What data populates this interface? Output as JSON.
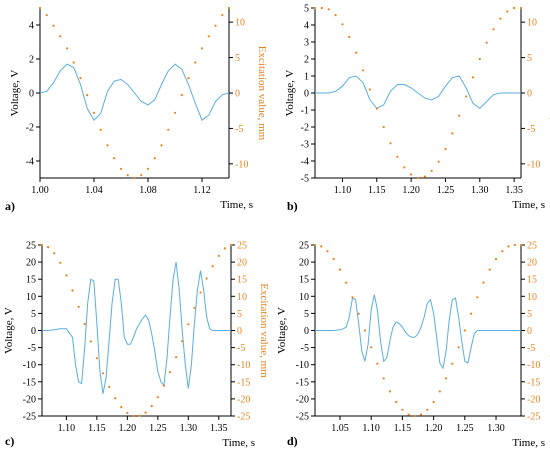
{
  "colors": {
    "voltage": "#5aaee0",
    "excitation": "#e8821e",
    "axis": "#000000",
    "excitation_text": "#e8821e"
  },
  "chart_data": [
    {
      "panel": "a)",
      "type": "line",
      "xlabel": "Time, s",
      "ylabel": "Voltage, V",
      "y2label": "Excitation value, mm",
      "xlim": [
        1.0,
        1.14
      ],
      "ylim": [
        -5,
        5
      ],
      "y2lim": [
        -12,
        12
      ],
      "xticks": [
        1.0,
        1.04,
        1.08,
        1.12
      ],
      "xticklabels": [
        "1.00",
        "1.04",
        "1.08",
        "1.12"
      ],
      "yticks": [
        -4,
        -2,
        0,
        2,
        4
      ],
      "y2ticks": [
        -10,
        -5,
        0,
        5,
        10
      ],
      "series": [
        {
          "name": "",
          "axis": "left",
          "style": "line",
          "x": [
            1.0,
            1.005,
            1.01,
            1.015,
            1.02,
            1.025,
            1.03,
            1.035,
            1.04,
            1.045,
            1.05,
            1.055,
            1.06,
            1.065,
            1.07,
            1.075,
            1.08,
            1.085,
            1.09,
            1.095,
            1.1,
            1.105,
            1.11,
            1.115,
            1.12,
            1.125,
            1.13,
            1.135,
            1.14
          ],
          "y": [
            0.0,
            0.1,
            0.6,
            1.3,
            1.7,
            1.5,
            0.5,
            -0.9,
            -1.6,
            -1.2,
            0.1,
            0.7,
            0.8,
            0.5,
            0.0,
            -0.5,
            -0.7,
            -0.4,
            0.5,
            1.3,
            1.7,
            1.4,
            0.5,
            -0.6,
            -1.6,
            -1.3,
            -0.5,
            -0.1,
            0.0
          ]
        },
        {
          "name": "",
          "axis": "right",
          "style": "dots",
          "x": [
            1.0,
            1.005,
            1.01,
            1.015,
            1.02,
            1.025,
            1.03,
            1.035,
            1.04,
            1.045,
            1.05,
            1.055,
            1.06,
            1.065,
            1.07,
            1.075,
            1.08,
            1.085,
            1.09,
            1.095,
            1.1,
            1.105,
            1.11,
            1.115,
            1.12,
            1.125,
            1.13,
            1.135,
            1.14
          ],
          "y": [
            12.0,
            11.0,
            9.5,
            8.0,
            6.3,
            4.3,
            2.1,
            -0.3,
            -2.8,
            -5.2,
            -7.4,
            -9.2,
            -10.7,
            -11.6,
            -12.0,
            -11.6,
            -10.7,
            -9.2,
            -7.4,
            -5.2,
            -2.8,
            -0.3,
            2.1,
            4.3,
            6.3,
            8.0,
            9.5,
            11.0,
            12.0
          ]
        }
      ]
    },
    {
      "panel": "b)",
      "type": "line",
      "xlabel": "Time, s",
      "ylabel": "Voltage, V",
      "y2label": "Excitation value, mm",
      "xlim": [
        1.06,
        1.36
      ],
      "ylim": [
        -5,
        5
      ],
      "y2lim": [
        -12,
        12
      ],
      "xticks": [
        1.1,
        1.15,
        1.2,
        1.25,
        1.3,
        1.35
      ],
      "xticklabels": [
        "1.10",
        "1.15",
        "1.20",
        "1.25",
        "1.30",
        "1.35"
      ],
      "yticks": [
        -5,
        -4,
        -3,
        -2,
        -1,
        0,
        1,
        2,
        3,
        4,
        5
      ],
      "y2ticks": [
        -10,
        -5,
        0,
        5,
        10
      ],
      "series": [
        {
          "name": "",
          "axis": "left",
          "style": "line",
          "x": [
            1.06,
            1.07,
            1.08,
            1.09,
            1.1,
            1.11,
            1.12,
            1.13,
            1.14,
            1.15,
            1.16,
            1.17,
            1.18,
            1.19,
            1.2,
            1.21,
            1.22,
            1.23,
            1.24,
            1.25,
            1.26,
            1.27,
            1.28,
            1.29,
            1.3,
            1.31,
            1.32,
            1.33,
            1.34,
            1.35,
            1.36
          ],
          "y": [
            0.0,
            0.0,
            0.0,
            0.1,
            0.4,
            0.9,
            1.0,
            0.6,
            -0.4,
            -0.9,
            -0.7,
            0.1,
            0.5,
            0.5,
            0.3,
            0.0,
            -0.3,
            -0.4,
            -0.2,
            0.4,
            0.9,
            1.0,
            0.3,
            -0.6,
            -0.9,
            -0.5,
            -0.1,
            0.0,
            0.0,
            0.0,
            0.0
          ]
        },
        {
          "name": "",
          "axis": "right",
          "style": "dots",
          "x": [
            1.06,
            1.07,
            1.08,
            1.09,
            1.1,
            1.11,
            1.12,
            1.13,
            1.14,
            1.15,
            1.16,
            1.17,
            1.18,
            1.19,
            1.2,
            1.21,
            1.22,
            1.23,
            1.24,
            1.25,
            1.26,
            1.27,
            1.28,
            1.29,
            1.3,
            1.31,
            1.32,
            1.33,
            1.34,
            1.35,
            1.36
          ],
          "y": [
            12.0,
            12.0,
            11.8,
            11.0,
            9.7,
            7.9,
            5.7,
            3.2,
            0.5,
            -2.2,
            -4.8,
            -7.1,
            -9.0,
            -10.5,
            -11.5,
            -12.0,
            -11.8,
            -11.0,
            -9.7,
            -7.9,
            -5.7,
            -3.2,
            -0.5,
            2.2,
            4.8,
            7.1,
            9.0,
            10.5,
            11.5,
            12.0,
            12.0
          ]
        }
      ]
    },
    {
      "panel": "c)",
      "type": "line",
      "xlabel": "Time, s",
      "ylabel": "Voltage, V",
      "y2label": "Excitation value, mm",
      "xlim": [
        1.06,
        1.37
      ],
      "ylim": [
        -25,
        25
      ],
      "y2lim": [
        -25,
        25
      ],
      "xticks": [
        1.1,
        1.15,
        1.2,
        1.25,
        1.3,
        1.35
      ],
      "xticklabels": [
        "1.10",
        "1.15",
        "1.20",
        "1.25",
        "1.30",
        "1.35"
      ],
      "yticks": [
        -25,
        -20,
        -15,
        -10,
        -5,
        0,
        5,
        10,
        15,
        20,
        25
      ],
      "y2ticks": [
        -25,
        -20,
        -15,
        -10,
        -5,
        0,
        5,
        10,
        15,
        20,
        25
      ],
      "series": [
        {
          "name": "",
          "axis": "left",
          "style": "line",
          "x": [
            1.06,
            1.07,
            1.08,
            1.09,
            1.1,
            1.11,
            1.115,
            1.12,
            1.125,
            1.13,
            1.135,
            1.14,
            1.145,
            1.15,
            1.155,
            1.16,
            1.165,
            1.17,
            1.175,
            1.18,
            1.185,
            1.19,
            1.195,
            1.2,
            1.205,
            1.21,
            1.215,
            1.22,
            1.225,
            1.23,
            1.235,
            1.24,
            1.245,
            1.25,
            1.255,
            1.26,
            1.265,
            1.27,
            1.275,
            1.28,
            1.285,
            1.29,
            1.295,
            1.3,
            1.305,
            1.31,
            1.315,
            1.32,
            1.325,
            1.33,
            1.335,
            1.34,
            1.345,
            1.35,
            1.355,
            1.36,
            1.37
          ],
          "y": [
            0.0,
            0.0,
            0.2,
            0.5,
            0.5,
            -2.0,
            -10.0,
            -15.0,
            -15.5,
            -5.0,
            8.0,
            15.0,
            14.5,
            2.0,
            -12.0,
            -18.5,
            -14.0,
            -3.0,
            8.0,
            15.0,
            15.0,
            8.0,
            -2.0,
            -4.0,
            -4.0,
            -2.0,
            0.5,
            2.0,
            3.5,
            4.5,
            3.0,
            -1.0,
            -6.0,
            -12.0,
            -15.0,
            -16.0,
            -8.0,
            4.0,
            15.0,
            20.0,
            12.0,
            0.0,
            -10.0,
            -17.0,
            -10.0,
            2.0,
            12.0,
            17.5,
            12.0,
            4.0,
            0.5,
            0.0,
            0.0,
            0.0,
            0.0,
            0.0,
            0.0
          ]
        },
        {
          "name": "",
          "axis": "right",
          "style": "dots",
          "x": [
            1.06,
            1.07,
            1.08,
            1.09,
            1.1,
            1.11,
            1.12,
            1.13,
            1.14,
            1.15,
            1.16,
            1.17,
            1.18,
            1.19,
            1.2,
            1.21,
            1.22,
            1.23,
            1.24,
            1.25,
            1.26,
            1.27,
            1.28,
            1.29,
            1.3,
            1.31,
            1.32,
            1.33,
            1.34,
            1.35,
            1.36,
            1.37
          ],
          "y": [
            25.0,
            24.4,
            22.6,
            19.8,
            16.1,
            11.7,
            6.9,
            1.9,
            -3.2,
            -8.1,
            -12.5,
            -16.5,
            -19.8,
            -22.4,
            -24.1,
            -25.0,
            -24.9,
            -24.0,
            -22.1,
            -19.5,
            -16.1,
            -12.2,
            -7.8,
            -3.1,
            1.8,
            6.6,
            11.1,
            15.2,
            18.8,
            21.8,
            24.0,
            25.0
          ]
        }
      ]
    },
    {
      "panel": "d)",
      "type": "line",
      "xlabel": "Time, s",
      "ylabel": "Voltage, V",
      "y2label": "Excitation value, mm",
      "xlim": [
        1.01,
        1.34
      ],
      "ylim": [
        -25,
        25
      ],
      "y2lim": [
        -25,
        25
      ],
      "xticks": [
        1.05,
        1.1,
        1.15,
        1.2,
        1.25,
        1.3
      ],
      "xticklabels": [
        "1.05",
        "1.10",
        "1.15",
        "1.20",
        "1.25",
        "1.30"
      ],
      "yticks": [
        -25,
        -20,
        -15,
        -10,
        -5,
        0,
        5,
        10,
        15,
        20,
        25
      ],
      "y2ticks": [
        -25,
        -20,
        -15,
        -10,
        -5,
        0,
        5,
        10,
        15,
        20,
        25
      ],
      "series": [
        {
          "name": "",
          "axis": "left",
          "style": "line",
          "x": [
            1.01,
            1.02,
            1.03,
            1.04,
            1.05,
            1.055,
            1.06,
            1.065,
            1.07,
            1.075,
            1.08,
            1.085,
            1.09,
            1.095,
            1.1,
            1.105,
            1.11,
            1.115,
            1.12,
            1.125,
            1.13,
            1.135,
            1.14,
            1.145,
            1.15,
            1.155,
            1.16,
            1.165,
            1.17,
            1.175,
            1.18,
            1.185,
            1.19,
            1.195,
            1.2,
            1.205,
            1.21,
            1.215,
            1.22,
            1.225,
            1.23,
            1.235,
            1.24,
            1.245,
            1.25,
            1.255,
            1.26,
            1.265,
            1.27,
            1.275,
            1.28,
            1.29,
            1.3,
            1.31,
            1.32,
            1.33,
            1.34
          ],
          "y": [
            0.0,
            0.0,
            0.0,
            0.0,
            0.2,
            0.5,
            1.0,
            4.0,
            9.5,
            9.0,
            2.0,
            -6.0,
            -9.0,
            -4.0,
            6.0,
            10.5,
            6.0,
            -3.0,
            -9.0,
            -8.0,
            -3.0,
            1.0,
            2.5,
            2.0,
            1.0,
            -0.5,
            -1.5,
            -2.0,
            -2.0,
            -1.0,
            1.0,
            4.0,
            8.0,
            9.0,
            5.0,
            -2.0,
            -9.5,
            -11.0,
            -6.0,
            3.0,
            9.0,
            9.5,
            4.0,
            -3.0,
            -9.0,
            -9.5,
            -5.0,
            -1.0,
            0.0,
            0.0,
            0.0,
            0.0,
            0.0,
            0.0,
            0.0,
            0.0,
            0.0
          ]
        },
        {
          "name": "",
          "axis": "right",
          "style": "dots",
          "x": [
            1.01,
            1.02,
            1.03,
            1.04,
            1.05,
            1.06,
            1.07,
            1.08,
            1.09,
            1.1,
            1.11,
            1.12,
            1.13,
            1.14,
            1.15,
            1.16,
            1.17,
            1.18,
            1.19,
            1.2,
            1.21,
            1.22,
            1.23,
            1.24,
            1.25,
            1.26,
            1.27,
            1.28,
            1.29,
            1.3,
            1.31,
            1.32,
            1.33,
            1.34
          ],
          "y": [
            25.0,
            24.6,
            23.2,
            20.9,
            17.8,
            14.0,
            9.7,
            4.9,
            0.0,
            -4.9,
            -9.7,
            -14.0,
            -17.8,
            -20.9,
            -23.2,
            -24.6,
            -25.0,
            -24.6,
            -23.2,
            -20.9,
            -17.8,
            -14.0,
            -9.7,
            -4.9,
            0.0,
            4.9,
            9.7,
            14.0,
            17.8,
            20.9,
            23.2,
            24.6,
            25.0,
            25.0
          ]
        }
      ]
    }
  ]
}
